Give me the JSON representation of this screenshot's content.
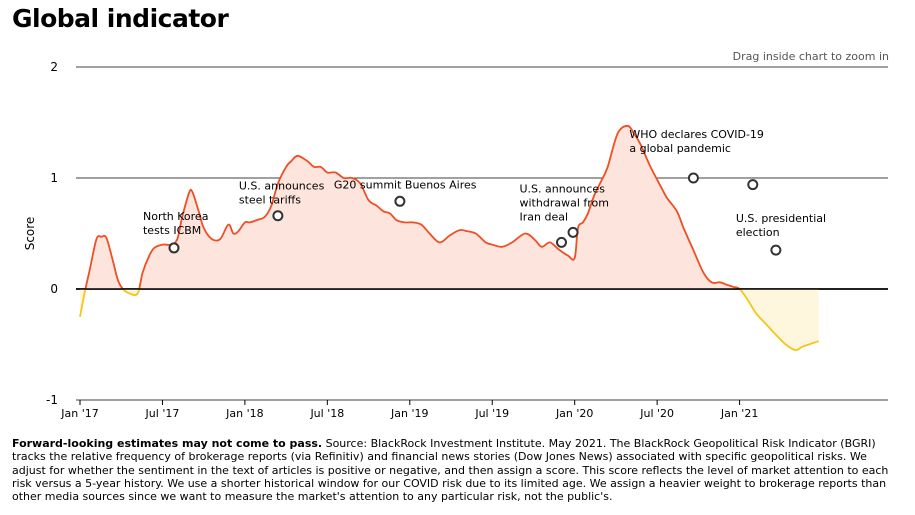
{
  "header": {
    "title": "Global indicator",
    "zoom_hint": "Drag inside chart to zoom in"
  },
  "footnote": {
    "lead": "Forward-looking estimates may not come to pass.",
    "text": " Source: BlackRock Investment Institute. May 2021. The BlackRock Geopolitical Risk Indicator (BGRI) tracks the relative frequency of brokerage reports (via Refinitiv) and financial news stories (Dow Jones News) associated with specific geopolitical risks. We adjust for whether the sentiment in the text of articles is positive or negative, and then assign a score. This score reflects the level of market attention to each risk versus a 5-year history. We use a shorter historical window for our COVID risk due to its limited age. We assign a heavier weight to brokerage reports than other media sources since we want to measure the market's attention to any particular risk, not the public's."
  },
  "chart_data": {
    "type": "area",
    "ylabel": "Score",
    "ylim": [
      -1,
      2
    ],
    "yticks": [
      -1,
      0,
      1,
      2
    ],
    "xlim": [
      2017.0,
      2021.9
    ],
    "xticks": [
      {
        "label": "Jan '17",
        "x": 2017.0
      },
      {
        "label": "Jul '17",
        "x": 2017.5
      },
      {
        "label": "Jan '18",
        "x": 2018.0
      },
      {
        "label": "Jul '18",
        "x": 2018.5
      },
      {
        "label": "Jan '19",
        "x": 2019.0
      },
      {
        "label": "Jul '19",
        "x": 2019.5
      },
      {
        "label": "Jan '20",
        "x": 2020.0
      },
      {
        "label": "Jul '20",
        "x": 2020.5
      },
      {
        "label": "Jan '21",
        "x": 2021.0
      }
    ],
    "colors": {
      "positive_line": "#f04e23",
      "negative_line": "#f5c518",
      "positive_fill": "#fde4dc",
      "negative_fill": "#fef7dd",
      "grid": "#000000",
      "marker_stroke": "#333333"
    },
    "series": [
      {
        "x": [
          2017.0,
          2017.03,
          2017.06,
          2017.1,
          2017.13,
          2017.16,
          2017.2,
          2017.23,
          2017.26,
          2017.3,
          2017.35,
          2017.38,
          2017.42,
          2017.45,
          2017.5,
          2017.55,
          2017.59,
          2017.62,
          2017.66,
          2017.68,
          2017.72,
          2017.75,
          2017.8,
          2017.85,
          2017.9,
          2017.93,
          2017.96,
          2018.0,
          2018.03,
          2018.07,
          2018.12,
          2018.16,
          2018.2,
          2018.25,
          2018.28,
          2018.32,
          2018.38,
          2018.42,
          2018.46,
          2018.5,
          2018.55,
          2018.6,
          2018.65,
          2018.7,
          2018.75,
          2018.8,
          2018.84,
          2018.88,
          2018.92,
          2018.97,
          2019.02,
          2019.07,
          2019.12,
          2019.18,
          2019.24,
          2019.3,
          2019.35,
          2019.4,
          2019.46,
          2019.5,
          2019.56,
          2019.62,
          2019.7,
          2019.76,
          2019.8,
          2019.85,
          2019.9,
          2019.96,
          2020.0,
          2020.02,
          2020.05,
          2020.08,
          2020.12,
          2020.16,
          2020.2,
          2020.26,
          2020.32,
          2020.36,
          2020.4,
          2020.46,
          2020.52,
          2020.56,
          2020.62,
          2020.66,
          2020.72,
          2020.78,
          2020.83,
          2020.88,
          2020.92,
          2020.96,
          2021.0,
          2021.05,
          2021.1,
          2021.15,
          2021.2,
          2021.28,
          2021.34,
          2021.38,
          2021.42,
          2021.48
        ],
        "y": [
          -0.25,
          -0.02,
          0.18,
          0.45,
          0.47,
          0.46,
          0.25,
          0.08,
          0.0,
          -0.04,
          -0.04,
          0.15,
          0.3,
          0.37,
          0.4,
          0.4,
          0.45,
          0.65,
          0.86,
          0.88,
          0.7,
          0.55,
          0.45,
          0.45,
          0.58,
          0.5,
          0.52,
          0.6,
          0.6,
          0.62,
          0.65,
          0.75,
          0.95,
          1.1,
          1.15,
          1.2,
          1.15,
          1.1,
          1.1,
          1.05,
          1.05,
          1.0,
          1.0,
          0.95,
          0.8,
          0.75,
          0.7,
          0.68,
          0.62,
          0.6,
          0.6,
          0.58,
          0.5,
          0.42,
          0.48,
          0.53,
          0.52,
          0.5,
          0.42,
          0.4,
          0.38,
          0.42,
          0.5,
          0.44,
          0.38,
          0.42,
          0.36,
          0.3,
          0.28,
          0.55,
          0.6,
          0.68,
          0.85,
          0.97,
          1.1,
          1.4,
          1.47,
          1.4,
          1.3,
          1.1,
          0.93,
          0.82,
          0.7,
          0.55,
          0.35,
          0.15,
          0.06,
          0.06,
          0.04,
          0.02,
          0.0,
          -0.1,
          -0.22,
          -0.3,
          -0.38,
          -0.5,
          -0.55,
          -0.52,
          -0.5,
          -0.47
        ]
      }
    ],
    "annotations": [
      {
        "x": 2017.57,
        "y": 0.37,
        "lines": [
          "North Korea",
          "tests ICBM"
        ]
      },
      {
        "x": 2018.2,
        "y": 0.66,
        "lines": [
          "U.S. announces",
          "steel tariffs"
        ]
      },
      {
        "x": 2018.94,
        "y": 0.79,
        "lines": [
          "G20 summit Buenos Aires"
        ]
      },
      {
        "x": 2019.92,
        "y": 0.42,
        "lines": [
          "U.S. announces",
          "withdrawal from",
          "Iran deal"
        ]
      },
      {
        "x": 2019.99,
        "y": 0.51,
        "lines": []
      },
      {
        "x": 2020.72,
        "y": 1.0,
        "lines": [
          "WHO declares COVID-19",
          "a global pandemic"
        ]
      },
      {
        "x": 2021.08,
        "y": 0.94,
        "lines": []
      },
      {
        "x": 2021.22,
        "y": 0.35,
        "lines": [
          "U.S. presidential",
          "election"
        ]
      }
    ]
  }
}
